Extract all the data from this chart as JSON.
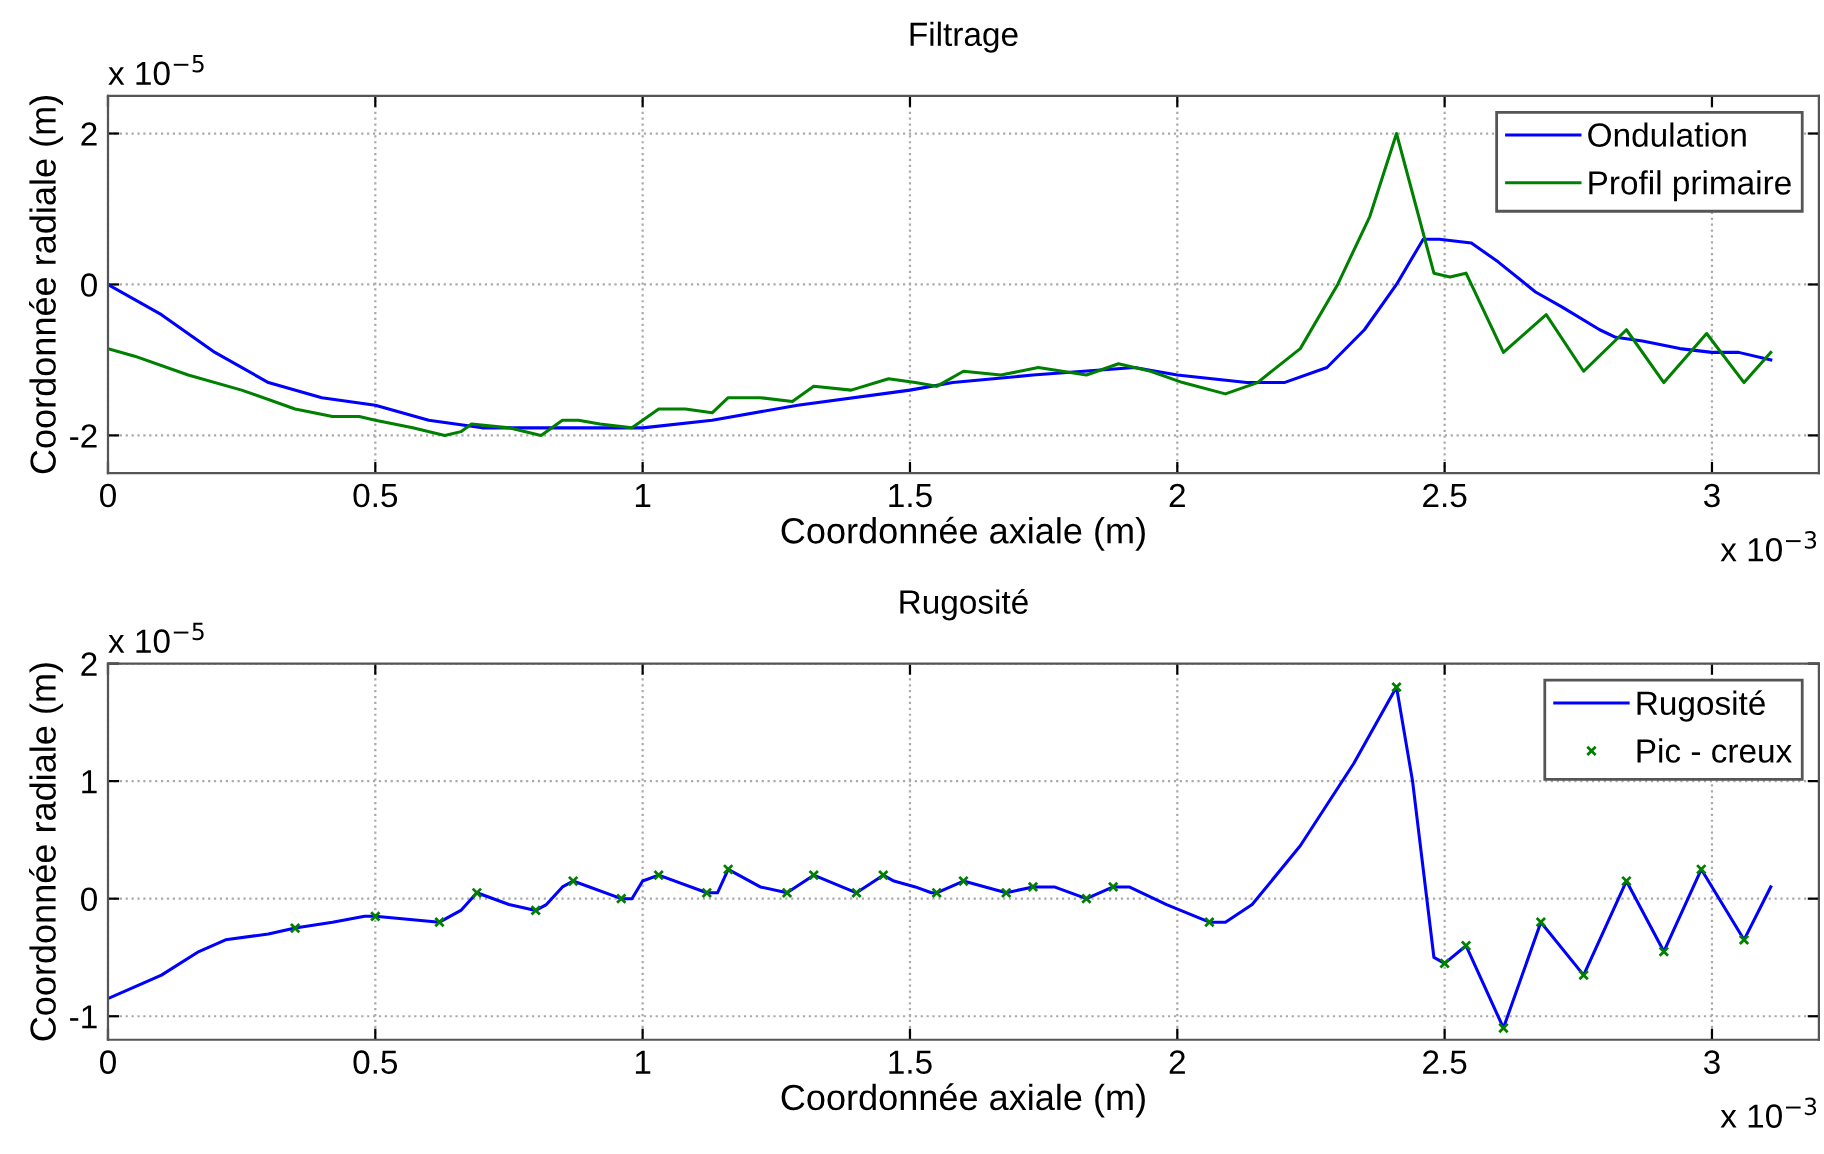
{
  "chart_data": [
    {
      "type": "line",
      "title": "Filtrage",
      "xlabel": "Coordonnée axiale (m)",
      "ylabel": "Coordonnée radiale (m)",
      "annotations": [
        "x 10$^{−5}$",
        "x 10$^{−3}$"
      ],
      "xlim": [
        0,
        3.2
      ],
      "xticks": [
        0,
        0.5,
        1,
        1.5,
        2,
        2.5,
        3
      ],
      "ylim": [
        -2.5,
        2.5
      ],
      "yticks": [
        -2,
        0,
        2
      ],
      "grid": true,
      "legend": "top right",
      "series": [
        {
          "name": "Ondulation",
          "color": "#0000ff",
          "x": [
            0,
            0.1,
            0.2,
            0.3,
            0.4,
            0.5,
            0.6,
            0.7,
            0.8,
            0.9,
            1.0,
            1.13,
            1.29,
            1.5,
            1.58,
            1.73,
            1.92,
            2.0,
            2.13,
            2.2,
            2.28,
            2.35,
            2.41,
            2.46,
            2.49,
            2.55,
            2.6,
            2.67,
            2.72,
            2.79,
            2.82,
            2.87,
            2.94,
            3.0,
            3.05,
            3.11
          ],
          "values": [
            0,
            -0.4,
            -0.9,
            -1.3,
            -1.5,
            -1.6,
            -1.8,
            -1.9,
            -1.9,
            -1.9,
            -1.9,
            -1.8,
            -1.6,
            -1.4,
            -1.3,
            -1.2,
            -1.1,
            -1.2,
            -1.3,
            -1.3,
            -1.1,
            -0.6,
            0,
            0.6,
            0.6,
            0.55,
            0.3,
            -0.1,
            -0.3,
            -0.6,
            -0.7,
            -0.75,
            -0.85,
            -0.9,
            -0.9,
            -1.0
          ]
        },
        {
          "name": "Profil primaire",
          "color": "#008000",
          "x": [
            0,
            0.05,
            0.15,
            0.25,
            0.35,
            0.42,
            0.47,
            0.5,
            0.57,
            0.63,
            0.66,
            0.68,
            0.75,
            0.81,
            0.85,
            0.88,
            0.92,
            0.98,
            1.03,
            1.08,
            1.13,
            1.16,
            1.22,
            1.28,
            1.32,
            1.39,
            1.46,
            1.51,
            1.55,
            1.6,
            1.67,
            1.74,
            1.83,
            1.89,
            1.95,
            2.01,
            2.09,
            2.15,
            2.23,
            2.3,
            2.36,
            2.41,
            2.48,
            2.51,
            2.54,
            2.61,
            2.69,
            2.76,
            2.84,
            2.91,
            2.99,
            3.06,
            3.11
          ],
          "values": [
            -0.85,
            -0.95,
            -1.2,
            -1.4,
            -1.65,
            -1.75,
            -1.75,
            -1.8,
            -1.9,
            -2.0,
            -1.95,
            -1.85,
            -1.9,
            -2.0,
            -1.8,
            -1.8,
            -1.85,
            -1.9,
            -1.65,
            -1.65,
            -1.7,
            -1.5,
            -1.5,
            -1.55,
            -1.35,
            -1.4,
            -1.25,
            -1.3,
            -1.35,
            -1.15,
            -1.2,
            -1.1,
            -1.2,
            -1.05,
            -1.15,
            -1.3,
            -1.45,
            -1.3,
            -0.85,
            0,
            0.9,
            2.0,
            0.15,
            0.1,
            0.15,
            -0.9,
            -0.4,
            -1.15,
            -0.6,
            -1.3,
            -0.65,
            -1.3,
            -0.9
          ]
        }
      ]
    },
    {
      "type": "line",
      "title": "Rugosité",
      "xlabel": "Coordonnée axiale (m)",
      "ylabel": "Coordonnée radiale (m)",
      "annotations": [
        "x 10$^{−5}$",
        "x 10$^{−3}$"
      ],
      "xlim": [
        0,
        3.2
      ],
      "xticks": [
        0,
        0.5,
        1,
        1.5,
        2,
        2.5,
        3
      ],
      "ylim": [
        -1.2,
        2
      ],
      "yticks": [
        -1,
        0,
        1,
        2
      ],
      "grid": true,
      "legend": "top right",
      "series": [
        {
          "name": "Rugosité",
          "color": "#0000ff",
          "x": [
            0,
            0.05,
            0.1,
            0.17,
            0.22,
            0.3,
            0.35,
            0.42,
            0.48,
            0.5,
            0.62,
            0.66,
            0.69,
            0.75,
            0.8,
            0.82,
            0.85,
            0.87,
            0.96,
            0.98,
            1.0,
            1.03,
            1.12,
            1.14,
            1.16,
            1.22,
            1.27,
            1.32,
            1.4,
            1.45,
            1.47,
            1.51,
            1.54,
            1.55,
            1.6,
            1.68,
            1.73,
            1.77,
            1.83,
            1.88,
            1.91,
            1.98,
            2.06,
            2.09,
            2.14,
            2.23,
            2.33,
            2.41,
            2.44,
            2.48,
            2.5,
            2.54,
            2.61,
            2.68,
            2.76,
            2.84,
            2.91,
            2.98,
            3.06,
            3.11
          ],
          "values": [
            -0.85,
            -0.75,
            -0.65,
            -0.45,
            -0.35,
            -0.3,
            -0.25,
            -0.2,
            -0.15,
            -0.15,
            -0.2,
            -0.1,
            0.05,
            -0.05,
            -0.1,
            -0.05,
            0.1,
            0.15,
            0,
            0,
            0.15,
            0.2,
            0.05,
            0.05,
            0.25,
            0.1,
            0.05,
            0.2,
            0.05,
            0.2,
            0.15,
            0.1,
            0.05,
            0.05,
            0.15,
            0.05,
            0.1,
            0.1,
            0,
            0.1,
            0.1,
            -0.05,
            -0.2,
            -0.2,
            -0.05,
            0.45,
            1.15,
            1.8,
            1.0,
            -0.5,
            -0.55,
            -0.4,
            -1.1,
            -0.2,
            -0.65,
            0.15,
            -0.45,
            0.25,
            -0.35,
            0.1
          ]
        },
        {
          "name": "Pic - creux",
          "type": "scatter",
          "marker": "cross",
          "color": "#008000",
          "x": [
            0.35,
            0.5,
            0.62,
            0.69,
            0.8,
            0.87,
            0.96,
            1.03,
            1.12,
            1.16,
            1.27,
            1.32,
            1.4,
            1.45,
            1.55,
            1.6,
            1.68,
            1.73,
            1.83,
            1.88,
            2.06,
            2.41,
            2.5,
            2.54,
            2.61,
            2.68,
            2.76,
            2.84,
            2.91,
            2.98,
            3.06
          ],
          "values": [
            -0.25,
            -0.15,
            -0.2,
            0.05,
            -0.1,
            0.15,
            0,
            0.2,
            0.05,
            0.25,
            0.05,
            0.2,
            0.05,
            0.2,
            0.05,
            0.15,
            0.05,
            0.1,
            0,
            0.1,
            -0.2,
            1.8,
            -0.55,
            -0.4,
            -1.1,
            -0.2,
            -0.65,
            0.15,
            -0.45,
            0.25,
            -0.35
          ]
        }
      ]
    }
  ]
}
